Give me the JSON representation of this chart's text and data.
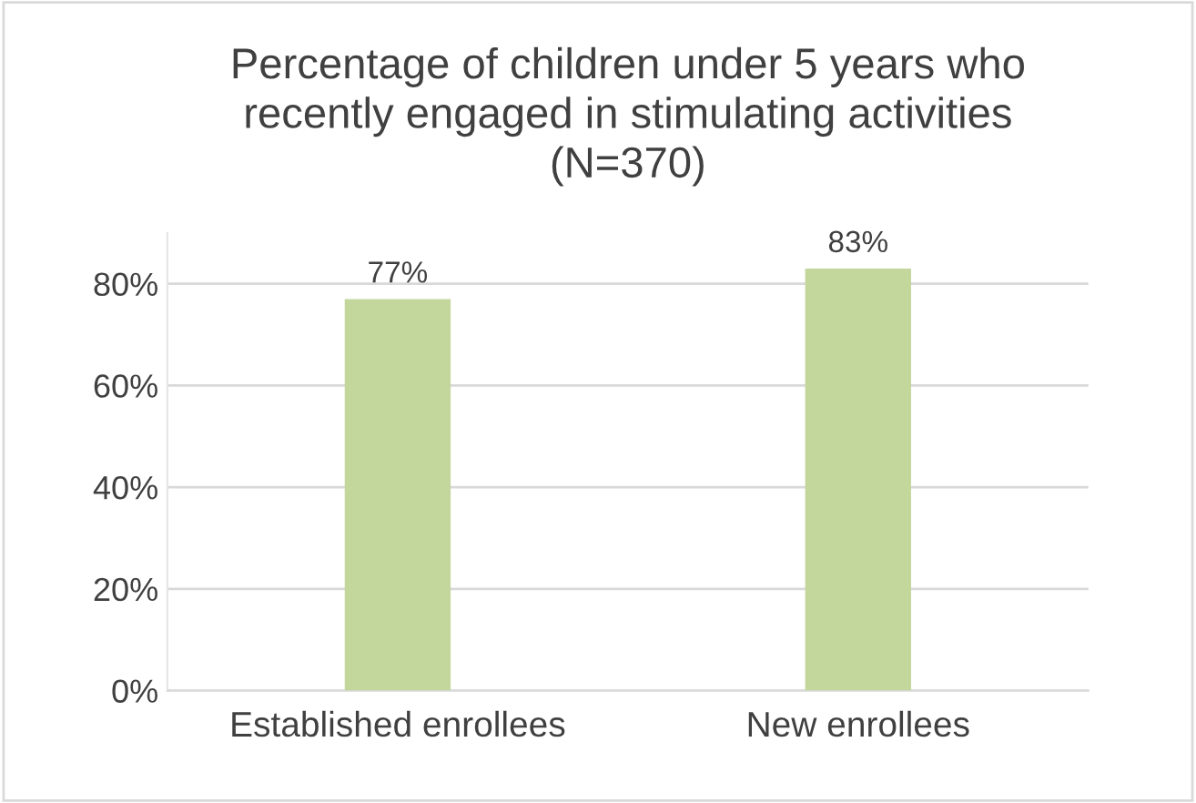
{
  "chart_data": {
    "type": "bar",
    "title": "Percentage of children under 5 years who\nrecently engaged in stimulating activities\n(N=370)",
    "categories": [
      "Established enrollees",
      "New enrollees"
    ],
    "values": [
      77,
      83
    ],
    "color": "#c3d69b",
    "value_labels": [
      "77%",
      "83%"
    ],
    "ylim": [
      0,
      90
    ],
    "yticks": [
      {
        "value": 0,
        "label": "0%"
      },
      {
        "value": 20,
        "label": "20%"
      },
      {
        "value": 40,
        "label": "40%"
      },
      {
        "value": 60,
        "label": "60%"
      },
      {
        "value": 80,
        "label": "80%"
      }
    ],
    "grid": "y",
    "legend": false
  }
}
